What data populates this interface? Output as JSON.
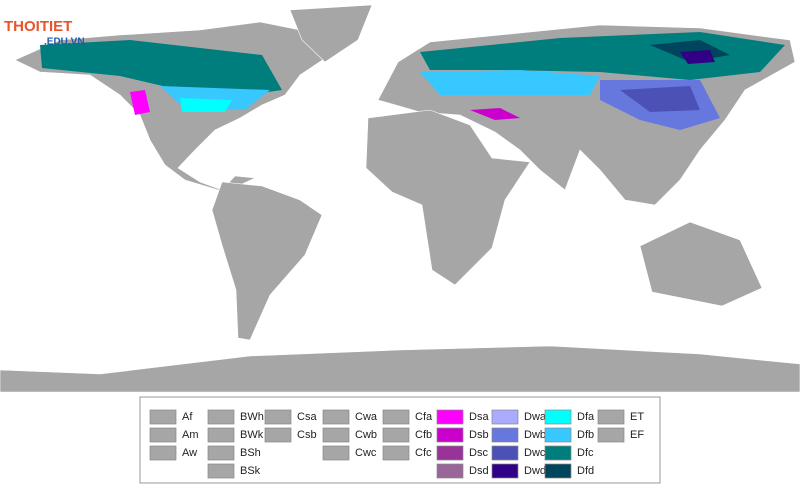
{
  "logo": {
    "name": "THOITIET",
    "domain": ".EDU.VN"
  },
  "legend": {
    "columns": [
      [
        {
          "label": "Af",
          "color": "#a6a6a6"
        },
        {
          "label": "Am",
          "color": "#a6a6a6"
        },
        {
          "label": "Aw",
          "color": "#a6a6a6"
        }
      ],
      [
        {
          "label": "BWh",
          "color": "#a6a6a6"
        },
        {
          "label": "BWk",
          "color": "#a6a6a6"
        },
        {
          "label": "BSh",
          "color": "#a6a6a6"
        },
        {
          "label": "BSk",
          "color": "#a6a6a6"
        }
      ],
      [
        {
          "label": "Csa",
          "color": "#a6a6a6"
        },
        {
          "label": "Csb",
          "color": "#a6a6a6"
        }
      ],
      [
        {
          "label": "Cwa",
          "color": "#a6a6a6"
        },
        {
          "label": "Cwb",
          "color": "#a6a6a6"
        },
        {
          "label": "Cwc",
          "color": "#a6a6a6"
        }
      ],
      [
        {
          "label": "Cfa",
          "color": "#a6a6a6"
        },
        {
          "label": "Cfb",
          "color": "#a6a6a6"
        },
        {
          "label": "Cfc",
          "color": "#a6a6a6"
        }
      ],
      [
        {
          "label": "Dsa",
          "color": "#ff00ff"
        },
        {
          "label": "Dsb",
          "color": "#cc00cc"
        },
        {
          "label": "Dsc",
          "color": "#993399"
        },
        {
          "label": "Dsd",
          "color": "#996699"
        }
      ],
      [
        {
          "label": "Dwa",
          "color": "#aaaaff"
        },
        {
          "label": "Dwb",
          "color": "#6677dd"
        },
        {
          "label": "Dwc",
          "color": "#4c51b5"
        },
        {
          "label": "Dwd",
          "color": "#320087"
        }
      ],
      [
        {
          "label": "Dfa",
          "color": "#00ffff"
        },
        {
          "label": "Dfb",
          "color": "#37c8ff"
        },
        {
          "label": "Dfc",
          "color": "#007e7d"
        },
        {
          "label": "Dfd",
          "color": "#00455e"
        }
      ],
      [
        {
          "label": "ET",
          "color": "#a6a6a6"
        },
        {
          "label": "EF",
          "color": "#a6a6a6"
        }
      ]
    ]
  }
}
